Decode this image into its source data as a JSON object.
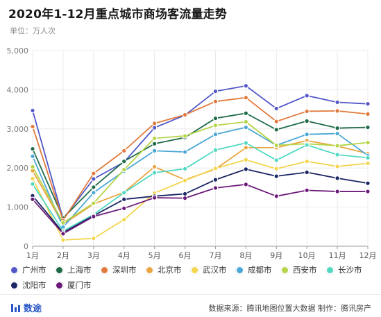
{
  "header": {
    "title": "2020年1-12月重点城市商场客流量走势",
    "unit": "单位：万人次"
  },
  "footer": {
    "logo_text": "数途",
    "source": "数据来源：腾讯地图位置大数据  制作：腾讯房产"
  },
  "chart_data": {
    "type": "line",
    "categories": [
      "1月",
      "2月",
      "3月",
      "4月",
      "5月",
      "6月",
      "7月",
      "8月",
      "9月",
      "10月",
      "11月",
      "12月"
    ],
    "ylim": [
      0,
      5000
    ],
    "yticks": [
      0,
      1000,
      2000,
      3000,
      4000,
      5000
    ],
    "ytick_labels": [
      "0",
      "1,000",
      "2,000",
      "3,000",
      "4,000",
      "5,000"
    ],
    "grid": true,
    "legend": "bottom",
    "series": [
      {
        "name": "广州市",
        "color": "#5257c9",
        "values": [
          3470,
          700,
          1720,
          2150,
          3030,
          3350,
          3960,
          4100,
          3520,
          3850,
          3680,
          3640
        ]
      },
      {
        "name": "上海市",
        "color": "#1f6b48",
        "values": [
          2490,
          720,
          1510,
          2170,
          2620,
          2780,
          3270,
          3400,
          2980,
          3200,
          3020,
          3040
        ]
      },
      {
        "name": "深圳市",
        "color": "#e07a3c",
        "values": [
          3060,
          660,
          1860,
          2440,
          3140,
          3360,
          3700,
          3800,
          3190,
          3450,
          3460,
          3380
        ]
      },
      {
        "name": "北京市",
        "color": "#eaa641",
        "values": [
          1930,
          560,
          1080,
          1380,
          2030,
          1700,
          1970,
          2520,
          2520,
          2700,
          2560,
          2370
        ]
      },
      {
        "name": "武汉市",
        "color": "#f3d54e",
        "values": [
          1730,
          160,
          200,
          680,
          1360,
          1680,
          1990,
          2210,
          1980,
          2170,
          2040,
          2120
        ]
      },
      {
        "name": "成都市",
        "color": "#4ba7d5",
        "values": [
          2300,
          490,
          1370,
          1920,
          2440,
          2410,
          2860,
          3040,
          2580,
          2860,
          2880,
          2320
        ]
      },
      {
        "name": "西安市",
        "color": "#b5d447",
        "values": [
          2030,
          600,
          1100,
          1960,
          2760,
          2820,
          3090,
          3180,
          2580,
          2620,
          2570,
          2650
        ]
      },
      {
        "name": "长沙市",
        "color": "#4fd9c2",
        "values": [
          1590,
          390,
          810,
          1370,
          1880,
          1980,
          2460,
          2640,
          2200,
          2590,
          2340,
          2260
        ]
      },
      {
        "name": "沈阳市",
        "color": "#1a2563",
        "values": [
          1290,
          350,
          780,
          1200,
          1280,
          1340,
          1700,
          1970,
          1790,
          1890,
          1740,
          1610
        ]
      },
      {
        "name": "厦门市",
        "color": "#6c1a7a",
        "values": [
          1200,
          320,
          760,
          970,
          1240,
          1230,
          1490,
          1580,
          1280,
          1430,
          1400,
          1400
        ]
      }
    ]
  }
}
